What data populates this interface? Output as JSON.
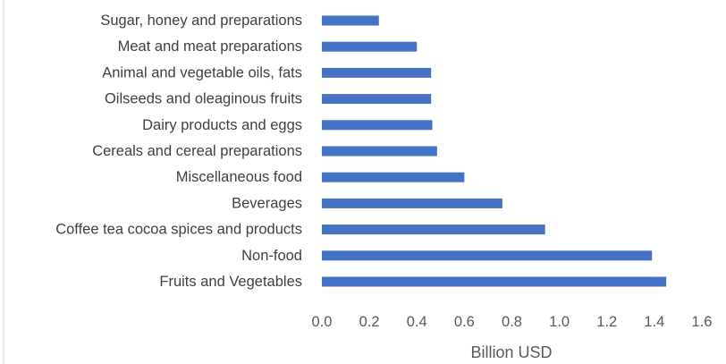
{
  "chart_data": {
    "type": "bar",
    "orientation": "horizontal",
    "categories": [
      "Sugar, honey and preparations",
      "Meat and meat preparations",
      "Animal and vegetable oils, fats",
      "Oilseeds and oleaginous fruits",
      "Dairy products and eggs",
      "Cereals and cereal preparations",
      "Miscellaneous food",
      "Beverages",
      "Coffee tea cocoa spices and products",
      "Non-food",
      "Fruits and Vegetables"
    ],
    "values": [
      0.24,
      0.4,
      0.46,
      0.46,
      0.465,
      0.485,
      0.6,
      0.76,
      0.94,
      1.39,
      1.45
    ],
    "xlabel": "Billion USD",
    "ylabel": "",
    "xlim": [
      0,
      1.6
    ],
    "xticks": [
      "0.0",
      "0.2",
      "0.4",
      "0.6",
      "0.8",
      "1.0",
      "1.2",
      "1.4",
      "1.6"
    ],
    "bar_color": "#4472c4",
    "grid": false,
    "legend": "none"
  }
}
